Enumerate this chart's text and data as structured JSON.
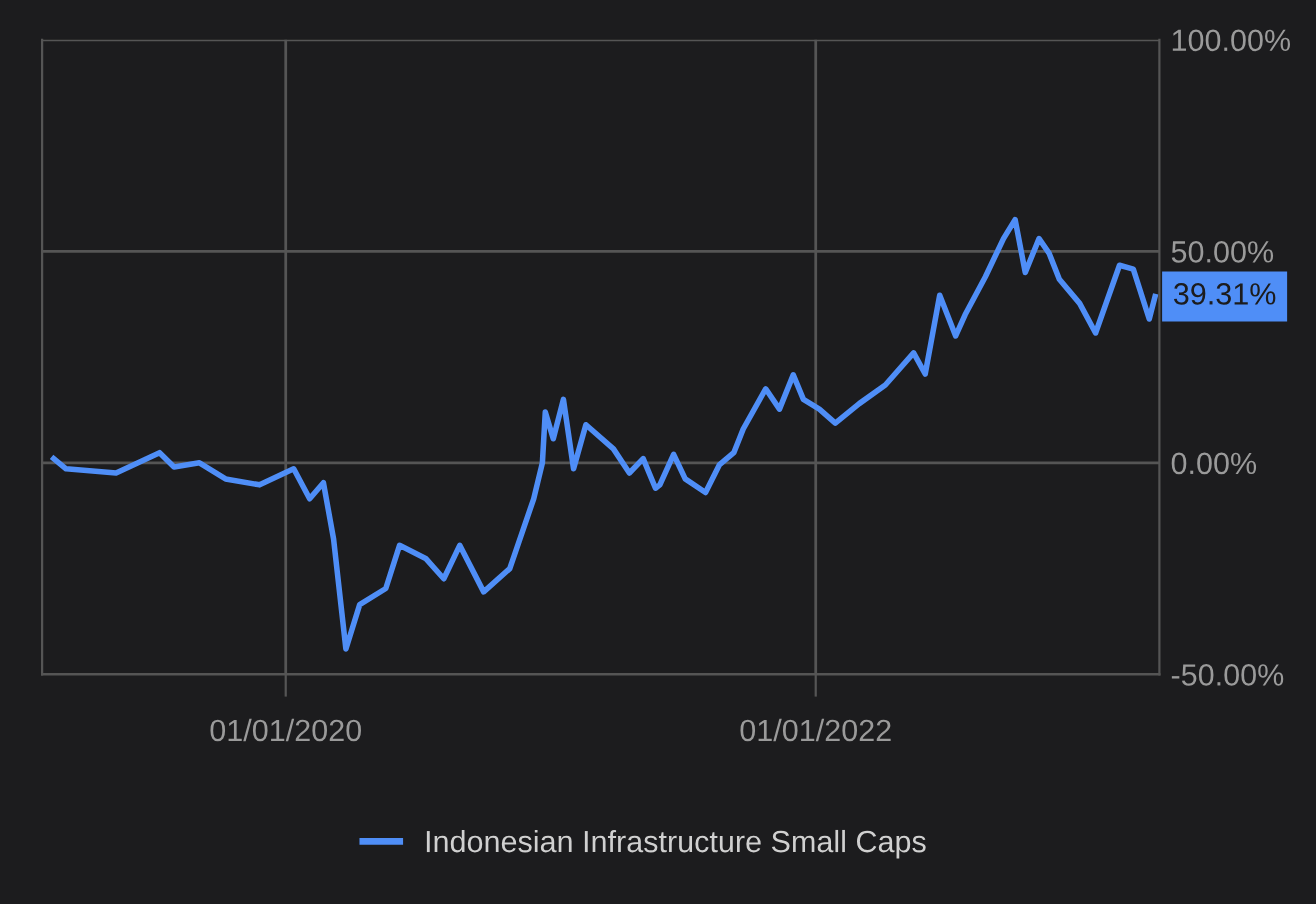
{
  "chart_data": {
    "type": "line",
    "x": [
      "2019-02-15",
      "2019-03-04",
      "2019-05-12",
      "2019-07-11",
      "2019-07-31",
      "2019-09-04",
      "2019-10-10",
      "2019-11-26",
      "2020-01-12",
      "2020-02-03",
      "2020-02-22",
      "2020-03-07",
      "2020-03-24",
      "2020-04-12",
      "2020-05-18",
      "2020-06-06",
      "2020-07-12",
      "2020-08-06",
      "2020-08-28",
      "2020-09-30",
      "2020-11-05",
      "2020-12-08",
      "2020-12-20",
      "2020-12-24",
      "2021-01-04",
      "2021-01-18",
      "2021-02-01",
      "2021-02-18",
      "2021-03-28",
      "2021-04-19",
      "2021-05-08",
      "2021-05-25",
      "2021-05-31",
      "2021-06-19",
      "2021-07-05",
      "2021-08-02",
      "2021-08-21",
      "2021-09-10",
      "2021-09-23",
      "2021-10-24",
      "2021-11-12",
      "2021-12-01",
      "2021-12-15",
      "2022-01-06",
      "2022-01-28",
      "2022-03-02",
      "2022-04-07",
      "2022-05-16",
      "2022-06-01",
      "2022-06-21",
      "2022-07-13",
      "2022-07-26",
      "2022-08-23",
      "2022-09-17",
      "2022-10-03",
      "2022-10-17",
      "2022-11-05",
      "2022-11-19",
      "2022-12-03",
      "2022-12-31",
      "2023-01-22",
      "2023-02-24",
      "2023-03-15",
      "2023-04-06",
      "2023-04-14"
    ],
    "series": [
      {
        "name": "Indonesian Infrastructure Small Caps",
        "color": "#4f8ef7",
        "values": [
          1,
          -1.4,
          -2.4,
          2.4,
          -1,
          0,
          -3.8,
          -5.2,
          -1.4,
          -8.5,
          -4.7,
          -18,
          -44,
          -33.5,
          -29.7,
          -19.5,
          -22.6,
          -27.4,
          -19.5,
          -30.5,
          -25,
          -8.5,
          0,
          12,
          5.7,
          15,
          -1.4,
          9,
          3.3,
          -2.4,
          1,
          -6,
          -5.2,
          2,
          -3.8,
          -7,
          -0.5,
          2.4,
          8,
          17.5,
          12.7,
          20.8,
          15,
          12.7,
          9.4,
          14,
          18.4,
          26,
          21,
          39.6,
          30,
          35,
          44,
          53,
          57.5,
          45,
          53,
          49.5,
          43.4,
          37.7,
          30.7,
          46.7,
          45.8,
          34,
          39.31
        ]
      }
    ],
    "xlim": [
      "2019-01-30",
      "2023-04-20"
    ],
    "xticks": [
      {
        "value": "2020-01-01",
        "label": "01/01/2020"
      },
      {
        "value": "2022-01-01",
        "label": "01/01/2022"
      }
    ],
    "ylim": [
      -50,
      100
    ],
    "yticks": [
      {
        "value": -50,
        "label": "-50.00%"
      },
      {
        "value": 0,
        "label": "0.00%"
      },
      {
        "value": 50,
        "label": "50.00%"
      },
      {
        "value": 100,
        "label": "100.00%"
      }
    ],
    "annotations": [
      {
        "text": "39.31%",
        "x": "2023-04-14",
        "y": 39.31
      }
    ],
    "grid": true,
    "legend": "bottom",
    "line_style": "solid",
    "marker": "none"
  }
}
